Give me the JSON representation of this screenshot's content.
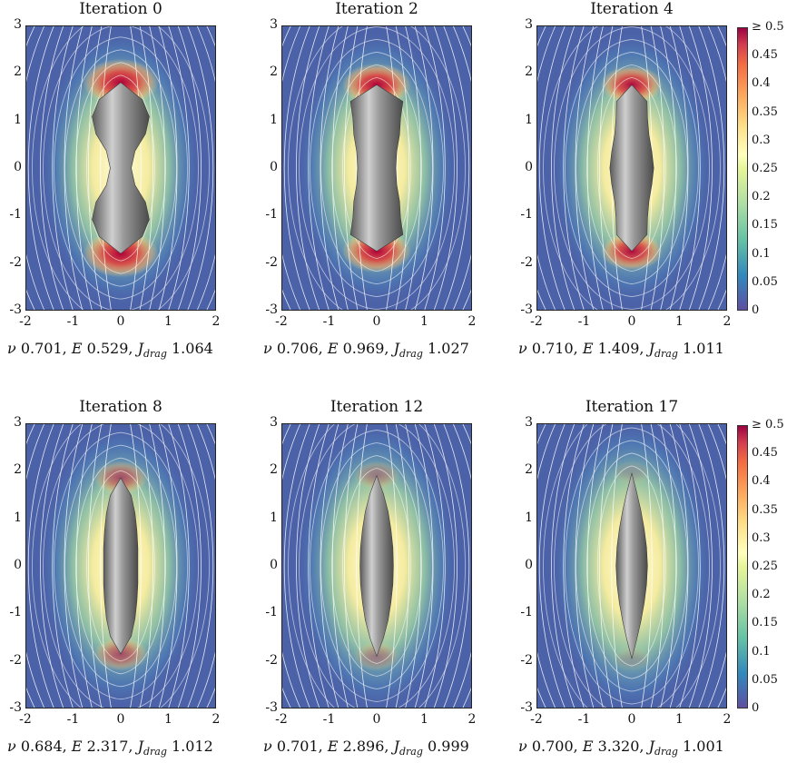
{
  "chart_data": [
    {
      "type": "heatmap",
      "title": "Iteration 0",
      "nu": "0.701",
      "E": "0.529",
      "J": "1.064",
      "xlim": [
        -2,
        2
      ],
      "ylim": [
        -3,
        3
      ],
      "xticks": [
        "-2",
        "-1",
        "0",
        "1",
        "2"
      ],
      "yticks": [
        "3",
        "2",
        "1",
        "0",
        "-1",
        "-2",
        "-3"
      ],
      "shape": {
        "halfLength": 1.8,
        "widths": [
          0.0,
          0.45,
          0.6,
          0.52,
          0.3,
          0.22,
          0.3,
          0.52,
          0.6,
          0.45,
          0.0
        ]
      }
    },
    {
      "type": "heatmap",
      "title": "Iteration 2",
      "nu": "0.706",
      "E": "0.969",
      "J": "1.027",
      "xlim": [
        -2,
        2
      ],
      "ylim": [
        -3,
        3
      ],
      "xticks": [
        "-2",
        "-1",
        "0",
        "1",
        "2"
      ],
      "yticks": [
        "3",
        "2",
        "1",
        "0",
        "-1",
        "-2",
        "-3"
      ],
      "shape": {
        "halfLength": 1.75,
        "widths": [
          0.0,
          0.55,
          0.5,
          0.48,
          0.42,
          0.4,
          0.42,
          0.48,
          0.5,
          0.55,
          0.0
        ]
      }
    },
    {
      "type": "heatmap",
      "title": "Iteration 4",
      "nu": "0.710",
      "E": "1.409",
      "J": "1.011",
      "xlim": [
        -2,
        2
      ],
      "ylim": [
        -3,
        3
      ],
      "xticks": [
        "-2",
        "-1",
        "0",
        "1",
        "2"
      ],
      "yticks": [
        "3",
        "2",
        "1",
        "0",
        "-1",
        "-2",
        "-3"
      ],
      "shape": {
        "halfLength": 1.75,
        "widths": [
          0.0,
          0.32,
          0.33,
          0.36,
          0.42,
          0.46,
          0.42,
          0.36,
          0.33,
          0.32,
          0.0
        ]
      }
    },
    {
      "type": "heatmap",
      "title": "Iteration 8",
      "nu": "0.684",
      "E": "2.317",
      "J": "1.012",
      "xlim": [
        -2,
        2
      ],
      "ylim": [
        -3,
        3
      ],
      "xticks": [
        "-2",
        "-1",
        "0",
        "1",
        "2"
      ],
      "yticks": [
        "3",
        "2",
        "1",
        "0",
        "-1",
        "-2",
        "-3"
      ],
      "shape": {
        "halfLength": 1.85,
        "widths": [
          0.0,
          0.22,
          0.3,
          0.34,
          0.36,
          0.36,
          0.36,
          0.34,
          0.3,
          0.22,
          0.0
        ]
      }
    },
    {
      "type": "heatmap",
      "title": "Iteration 12",
      "nu": "0.701",
      "E": "2.896",
      "J": "0.999",
      "xlim": [
        -2,
        2
      ],
      "ylim": [
        -3,
        3
      ],
      "xticks": [
        "-2",
        "-1",
        "0",
        "1",
        "2"
      ],
      "yticks": [
        "3",
        "2",
        "1",
        "0",
        "-1",
        "-2",
        "-3"
      ],
      "shape": {
        "halfLength": 1.9,
        "widths": [
          0.0,
          0.14,
          0.24,
          0.3,
          0.34,
          0.35,
          0.34,
          0.3,
          0.24,
          0.14,
          0.0
        ]
      }
    },
    {
      "type": "heatmap",
      "title": "Iteration 17",
      "nu": "0.700",
      "E": "3.320",
      "J": "1.001",
      "xlim": [
        -2,
        2
      ],
      "ylim": [
        -3,
        3
      ],
      "xticks": [
        "-2",
        "-1",
        "0",
        "1",
        "2"
      ],
      "yticks": [
        "3",
        "2",
        "1",
        "0",
        "-1",
        "-2",
        "-3"
      ],
      "shape": {
        "halfLength": 1.95,
        "widths": [
          0.0,
          0.1,
          0.19,
          0.26,
          0.31,
          0.33,
          0.31,
          0.26,
          0.19,
          0.1,
          0.0
        ]
      }
    }
  ],
  "colorbar": {
    "ticks": [
      "≥ 0.5",
      "0.45",
      "0.4",
      "0.35",
      "0.3",
      "0.25",
      "0.2",
      "0.15",
      "0.1",
      "0.05",
      "0"
    ],
    "range": [
      0,
      0.5
    ]
  },
  "colors": {
    "background": "#4c62a8",
    "shape": "#8a8a8a",
    "streamline": "#ffffff"
  }
}
